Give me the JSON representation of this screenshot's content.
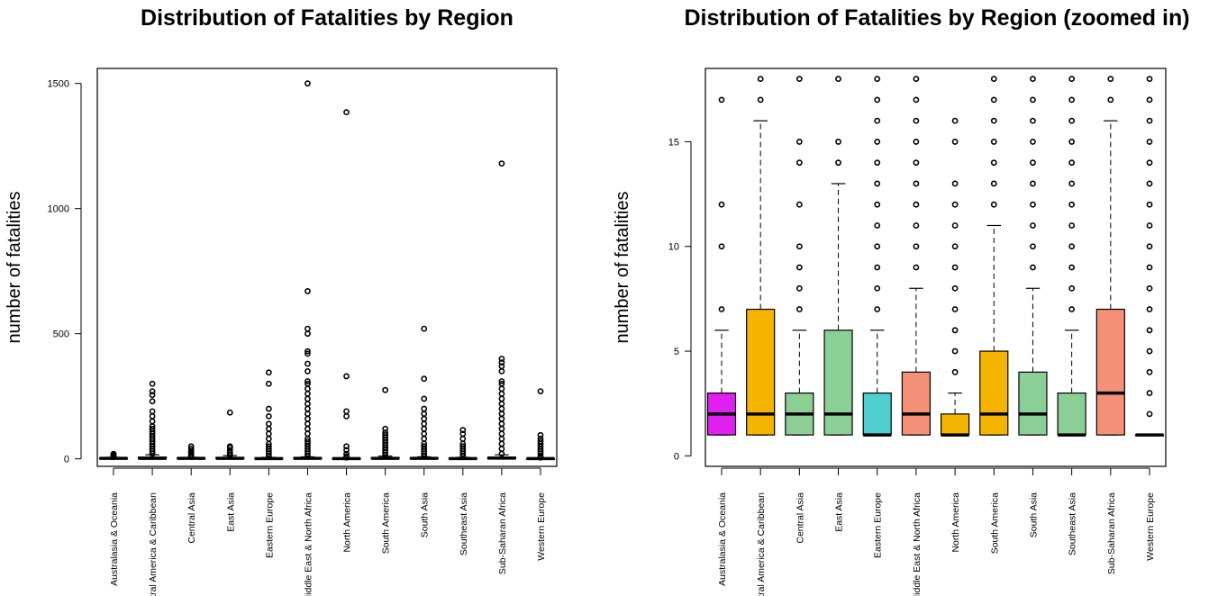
{
  "chart_data": [
    {
      "type": "boxplot",
      "title": "Distribution of Fatalities by Region",
      "ylabel": "number of fatalities",
      "xlabel": "",
      "ylim": [
        -30,
        1560
      ],
      "yticks": [
        0,
        500,
        1000,
        1500
      ],
      "categories": [
        "Australasia & Oceania",
        "Central America & Caribbean",
        "Central Asia",
        "East Asia",
        "Eastern Europe",
        "Middle East & North Africa",
        "North America",
        "South America",
        "South Asia",
        "Southeast Asia",
        "Sub-Saharan Africa",
        "Western Europe"
      ],
      "boxes": [
        {
          "q1": 1,
          "median": 2,
          "q3": 3,
          "whisker_low": 1,
          "whisker_high": 6,
          "outliers": [
            7,
            10,
            12,
            17,
            20
          ]
        },
        {
          "q1": 1,
          "median": 2,
          "q3": 7,
          "whisker_low": 1,
          "whisker_high": 16,
          "outliers": [
            20,
            30,
            40,
            50,
            60,
            70,
            80,
            90,
            100,
            110,
            120,
            130,
            150,
            170,
            190,
            230,
            255,
            270,
            300
          ]
        },
        {
          "q1": 1,
          "median": 2,
          "q3": 3,
          "whisker_low": 1,
          "whisker_high": 6,
          "outliers": [
            8,
            12,
            15,
            18,
            25,
            30,
            40,
            50
          ]
        },
        {
          "q1": 1,
          "median": 2,
          "q3": 6,
          "whisker_low": 1,
          "whisker_high": 13,
          "outliers": [
            15,
            18,
            25,
            35,
            45,
            50,
            185
          ]
        },
        {
          "q1": 1,
          "median": 1,
          "q3": 3,
          "whisker_low": 1,
          "whisker_high": 6,
          "outliers": [
            10,
            20,
            30,
            40,
            50,
            60,
            80,
            100,
            120,
            140,
            170,
            200,
            300,
            345
          ]
        },
        {
          "q1": 1,
          "median": 2,
          "q3": 4,
          "whisker_low": 1,
          "whisker_high": 8,
          "outliers": [
            10,
            20,
            30,
            40,
            50,
            60,
            70,
            80,
            100,
            120,
            140,
            160,
            180,
            200,
            220,
            240,
            260,
            280,
            300,
            310,
            350,
            380,
            420,
            430,
            500,
            520,
            670,
            1500
          ]
        },
        {
          "q1": 1,
          "median": 1,
          "q3": 2,
          "whisker_low": 1,
          "whisker_high": 3,
          "outliers": [
            5,
            10,
            20,
            35,
            50,
            170,
            190,
            330,
            1385
          ]
        },
        {
          "q1": 1,
          "median": 2,
          "q3": 5,
          "whisker_low": 1,
          "whisker_high": 11,
          "outliers": [
            15,
            25,
            35,
            45,
            55,
            65,
            75,
            85,
            95,
            105,
            120,
            275
          ]
        },
        {
          "q1": 1,
          "median": 2,
          "q3": 4,
          "whisker_low": 1,
          "whisker_high": 8,
          "outliers": [
            10,
            20,
            30,
            40,
            50,
            60,
            80,
            100,
            120,
            140,
            160,
            180,
            200,
            240,
            320,
            520
          ]
        },
        {
          "q1": 1,
          "median": 1,
          "q3": 3,
          "whisker_low": 1,
          "whisker_high": 6,
          "outliers": [
            10,
            20,
            30,
            40,
            50,
            60,
            80,
            100,
            115
          ]
        },
        {
          "q1": 1,
          "median": 3,
          "q3": 7,
          "whisker_low": 1,
          "whisker_high": 16,
          "outliers": [
            20,
            40,
            60,
            80,
            100,
            120,
            140,
            160,
            180,
            200,
            220,
            240,
            260,
            280,
            300,
            310,
            350,
            370,
            385,
            400,
            1180
          ]
        },
        {
          "q1": 1,
          "median": 1,
          "q3": 1,
          "whisker_low": 1,
          "whisker_high": 1,
          "outliers": [
            5,
            10,
            20,
            30,
            40,
            50,
            60,
            70,
            80,
            95,
            270
          ]
        }
      ]
    },
    {
      "type": "boxplot",
      "title": "Distribution of Fatalities by Region (zoomed in)",
      "ylabel": "number of fatalities",
      "xlabel": "",
      "ylim": [
        -0.5,
        18.5
      ],
      "yticks": [
        0,
        5,
        10,
        15
      ],
      "colors": [
        "#e020f0",
        "#f5b400",
        "#8ccf96",
        "#8ccf96",
        "#4fcfd0",
        "#f59178",
        "#f5b400",
        "#f5b400",
        "#8ccf96",
        "#8ccf96",
        "#f59178",
        "#8ccf96"
      ],
      "categories": [
        "Australasia & Oceania",
        "Central America & Caribbean",
        "Central Asia",
        "East Asia",
        "Eastern Europe",
        "Middle East & North Africa",
        "North America",
        "South America",
        "South Asia",
        "Southeast Asia",
        "Sub-Saharan Africa",
        "Western Europe"
      ],
      "boxes": [
        {
          "q1": 1,
          "median": 2,
          "q3": 3,
          "whisker_low": 1,
          "whisker_high": 6,
          "outliers": [
            7,
            10,
            12,
            17
          ]
        },
        {
          "q1": 1,
          "median": 2,
          "q3": 7,
          "whisker_low": 1,
          "whisker_high": 16,
          "outliers": [
            17,
            18
          ]
        },
        {
          "q1": 1,
          "median": 2,
          "q3": 3,
          "whisker_low": 1,
          "whisker_high": 6,
          "outliers": [
            7,
            8,
            9,
            10,
            12,
            14,
            15,
            18
          ]
        },
        {
          "q1": 1,
          "median": 2,
          "q3": 6,
          "whisker_low": 1,
          "whisker_high": 13,
          "outliers": [
            14,
            15,
            18
          ]
        },
        {
          "q1": 1,
          "median": 1,
          "q3": 3,
          "whisker_low": 1,
          "whisker_high": 6,
          "outliers": [
            7,
            8,
            9,
            10,
            11,
            12,
            13,
            14,
            15,
            16,
            17,
            18
          ]
        },
        {
          "q1": 1,
          "median": 2,
          "q3": 4,
          "whisker_low": 1,
          "whisker_high": 8,
          "outliers": [
            9,
            10,
            11,
            12,
            13,
            14,
            15,
            16,
            17,
            18
          ]
        },
        {
          "q1": 1,
          "median": 1,
          "q3": 2,
          "whisker_low": 1,
          "whisker_high": 3,
          "outliers": [
            4,
            5,
            6,
            7,
            8,
            9,
            10,
            11,
            12,
            13,
            15,
            16
          ]
        },
        {
          "q1": 1,
          "median": 2,
          "q3": 5,
          "whisker_low": 1,
          "whisker_high": 11,
          "outliers": [
            12,
            13,
            14,
            15,
            16,
            17,
            18
          ]
        },
        {
          "q1": 1,
          "median": 2,
          "q3": 4,
          "whisker_low": 1,
          "whisker_high": 8,
          "outliers": [
            9,
            10,
            11,
            12,
            13,
            14,
            15,
            16,
            17,
            18
          ]
        },
        {
          "q1": 1,
          "median": 1,
          "q3": 3,
          "whisker_low": 1,
          "whisker_high": 6,
          "outliers": [
            7,
            8,
            9,
            10,
            11,
            12,
            13,
            14,
            15,
            16,
            17,
            18
          ]
        },
        {
          "q1": 1,
          "median": 3,
          "q3": 7,
          "whisker_low": 1,
          "whisker_high": 16,
          "outliers": [
            17,
            18
          ]
        },
        {
          "q1": 1,
          "median": 1,
          "q3": 1,
          "whisker_low": 1,
          "whisker_high": 1,
          "outliers": [
            2,
            3,
            4,
            5,
            6,
            7,
            8,
            9,
            10,
            11,
            12,
            13,
            14,
            15,
            16,
            17,
            18
          ]
        }
      ]
    }
  ]
}
